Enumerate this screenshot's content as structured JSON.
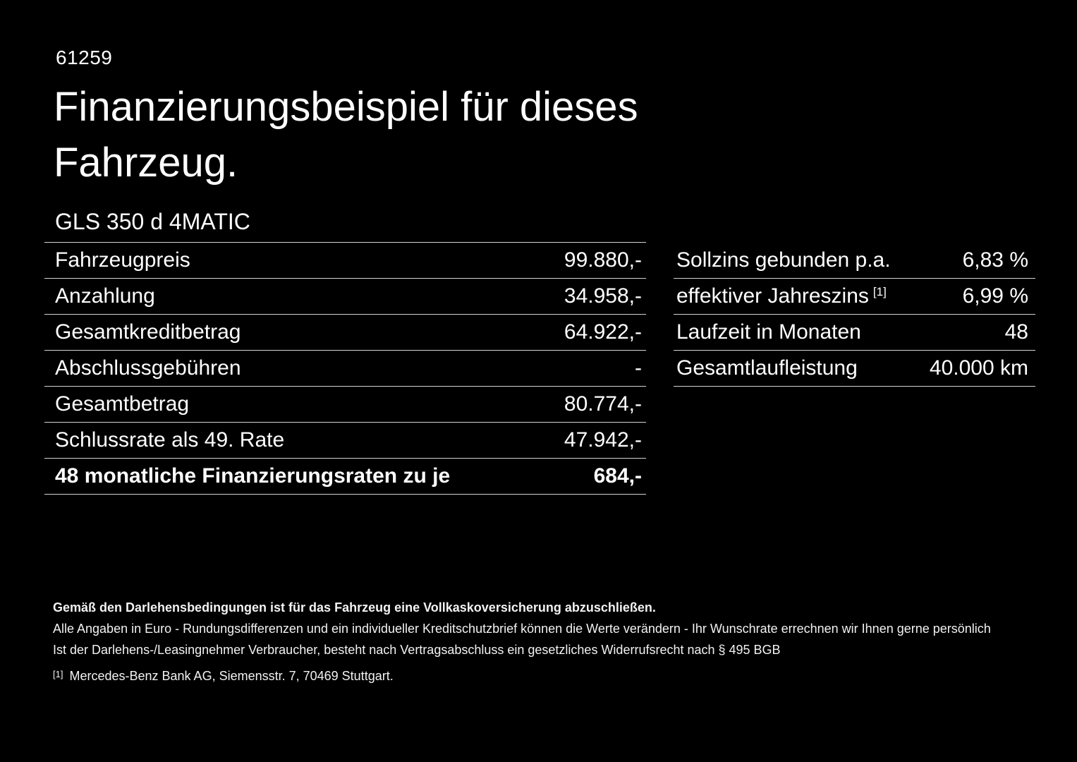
{
  "colors": {
    "background": "#000000",
    "text": "#ffffff",
    "divider": "#d4d4d4"
  },
  "header": {
    "doc_number": "61259",
    "title_line1": "Finanzierungsbeispiel für dieses",
    "title_line2": "Fahrzeug.",
    "model": "GLS 350 d 4MATIC"
  },
  "finance_table": {
    "rows": [
      {
        "label": "Fahrzeugpreis",
        "value": "99.880,-"
      },
      {
        "label": "Anzahlung",
        "value": "34.958,-"
      },
      {
        "label": "Gesamtkreditbetrag",
        "value": "64.922,-"
      },
      {
        "label": "Abschlussgebühren",
        "value": "-"
      },
      {
        "label": "Gesamtbetrag",
        "value": "80.774,-"
      },
      {
        "label": "Schlussrate als 49. Rate",
        "value": "47.942,-"
      },
      {
        "label": "48 monatliche Finanzierungsraten zu je",
        "value": "684,-"
      }
    ]
  },
  "conditions_table": {
    "rows": [
      {
        "label": "Sollzins gebunden p.a.",
        "value": "6,83 %"
      },
      {
        "label": "effektiver Jahreszins",
        "marker": "[1]",
        "value": "6,99 %"
      },
      {
        "label": "Laufzeit in Monaten",
        "value": "48"
      },
      {
        "label": "Gesamtlaufleistung",
        "value": "40.000 km"
      }
    ]
  },
  "footer": {
    "insurance_note": "Gemäß den Darlehensbedingungen ist für das Fahrzeug eine Vollkaskoversicherung abzuschließen.",
    "note2": "Alle Angaben in Euro - Rundungsdifferenzen und ein individueller Kreditschutzbrief können die Werte verändern - Ihr Wunschrate errechnen wir Ihnen gerne persönlich",
    "note3": "Ist der Darlehens-/Leasingnehmer Verbraucher, besteht nach Vertragsabschluss ein gesetzliches Widerrufsrecht nach § 495 BGB",
    "footnote_marker": "[1]",
    "footnote_text": "Mercedes-Benz Bank AG, Siemensstr. 7, 70469 Stuttgart."
  }
}
